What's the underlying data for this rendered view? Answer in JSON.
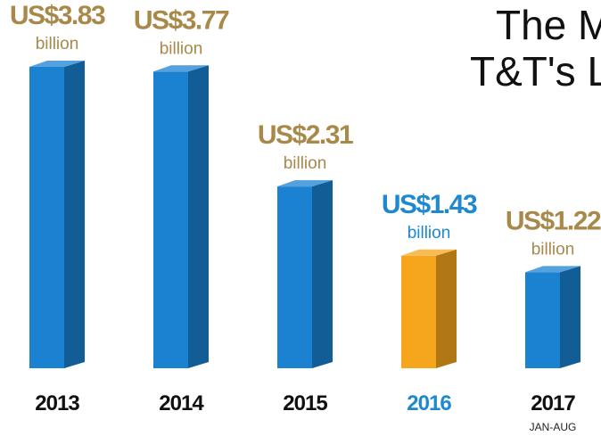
{
  "chart_data": {
    "type": "bar",
    "title_lines": [
      "The M",
      "T&T's L"
    ],
    "categories": [
      "2013",
      "2014",
      "2015",
      "2016",
      "2017"
    ],
    "category_notes": [
      null,
      null,
      null,
      null,
      "JAN-AUG"
    ],
    "values": [
      3.83,
      3.77,
      2.31,
      1.43,
      1.22
    ],
    "value_labels": [
      "US$3.83",
      "US$3.77",
      "US$2.31",
      "US$1.43",
      "US$1.22"
    ],
    "value_unit": "billion",
    "colors": [
      "#1b82d2",
      "#1b82d2",
      "#1b82d2",
      "#f5a61c",
      "#1b82d2"
    ],
    "label_colors": [
      "#a8894a",
      "#a8894a",
      "#a8894a",
      "#1e88d0",
      "#a8894a"
    ],
    "category_colors": [
      "#111111",
      "#111111",
      "#111111",
      "#1e88d0",
      "#111111"
    ]
  }
}
